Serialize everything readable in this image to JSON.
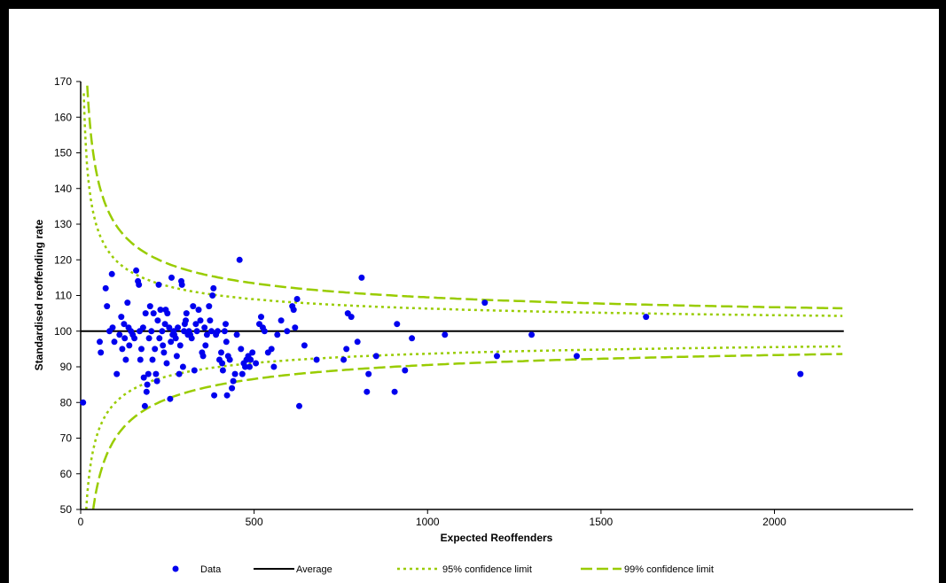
{
  "chart_data": {
    "type": "scatter",
    "xlabel": "Expected Reoffenders",
    "ylabel": "Standardised reoffending rate",
    "xlim": [
      0,
      2400
    ],
    "ylim": [
      50,
      170
    ],
    "x_ticks": [
      0,
      500,
      1000,
      1500,
      2000
    ],
    "y_ticks": [
      50,
      60,
      70,
      80,
      90,
      100,
      110,
      120,
      130,
      140,
      150,
      160,
      170
    ],
    "x_tick_labels": [
      "0",
      "500",
      "1000",
      "1500",
      "2000"
    ],
    "y_tick_labels": [
      "50",
      "60",
      "70",
      "80",
      "90",
      "100",
      "110",
      "120",
      "130",
      "140",
      "150",
      "160",
      "170"
    ],
    "legend_position": "bottom",
    "series": [
      {
        "name": "Data",
        "kind": "scatter",
        "color": "#0000ee",
        "points": [
          [
            7,
            80
          ],
          [
            55,
            97
          ],
          [
            58,
            94
          ],
          [
            72,
            112
          ],
          [
            76,
            107
          ],
          [
            83,
            100
          ],
          [
            90,
            116
          ],
          [
            92,
            101
          ],
          [
            97,
            97
          ],
          [
            104,
            88
          ],
          [
            112,
            99
          ],
          [
            117,
            104
          ],
          [
            120,
            95
          ],
          [
            125,
            102
          ],
          [
            127,
            98
          ],
          [
            130,
            92
          ],
          [
            135,
            108
          ],
          [
            138,
            101
          ],
          [
            140,
            96
          ],
          [
            145,
            100
          ],
          [
            150,
            99
          ],
          [
            155,
            98
          ],
          [
            160,
            117
          ],
          [
            165,
            114
          ],
          [
            168,
            113
          ],
          [
            170,
            100
          ],
          [
            172,
            92
          ],
          [
            175,
            95
          ],
          [
            180,
            101
          ],
          [
            182,
            87
          ],
          [
            185,
            79
          ],
          [
            187,
            105
          ],
          [
            190,
            83
          ],
          [
            192,
            85
          ],
          [
            195,
            88
          ],
          [
            197,
            98
          ],
          [
            200,
            107
          ],
          [
            204,
            100
          ],
          [
            207,
            92
          ],
          [
            210,
            105
          ],
          [
            214,
            95
          ],
          [
            217,
            88
          ],
          [
            220,
            86
          ],
          [
            222,
            103
          ],
          [
            225,
            113
          ],
          [
            227,
            98
          ],
          [
            230,
            106
          ],
          [
            235,
            100
          ],
          [
            237,
            96
          ],
          [
            240,
            94
          ],
          [
            243,
            102
          ],
          [
            245,
            106
          ],
          [
            248,
            91
          ],
          [
            250,
            105
          ],
          [
            255,
            101
          ],
          [
            258,
            81
          ],
          [
            260,
            97
          ],
          [
            262,
            115
          ],
          [
            265,
            99
          ],
          [
            268,
            100
          ],
          [
            270,
            99
          ],
          [
            274,
            98
          ],
          [
            277,
            93
          ],
          [
            280,
            101
          ],
          [
            284,
            88
          ],
          [
            287,
            96
          ],
          [
            290,
            114
          ],
          [
            292,
            113
          ],
          [
            295,
            90
          ],
          [
            298,
            100
          ],
          [
            300,
            102
          ],
          [
            303,
            103
          ],
          [
            305,
            105
          ],
          [
            309,
            99
          ],
          [
            312,
            100
          ],
          [
            316,
            99
          ],
          [
            320,
            98
          ],
          [
            324,
            107
          ],
          [
            328,
            89
          ],
          [
            332,
            102
          ],
          [
            335,
            100
          ],
          [
            340,
            106
          ],
          [
            345,
            103
          ],
          [
            350,
            94
          ],
          [
            353,
            93
          ],
          [
            357,
            101
          ],
          [
            360,
            96
          ],
          [
            364,
            99
          ],
          [
            370,
            107
          ],
          [
            373,
            103
          ],
          [
            377,
            100
          ],
          [
            380,
            110
          ],
          [
            383,
            112
          ],
          [
            385,
            82
          ],
          [
            390,
            99
          ],
          [
            395,
            100
          ],
          [
            400,
            92
          ],
          [
            405,
            94
          ],
          [
            408,
            91
          ],
          [
            410,
            89
          ],
          [
            415,
            100
          ],
          [
            418,
            102
          ],
          [
            420,
            97
          ],
          [
            422,
            82
          ],
          [
            425,
            93
          ],
          [
            430,
            92
          ],
          [
            436,
            84
          ],
          [
            440,
            86
          ],
          [
            445,
            88
          ],
          [
            450,
            99
          ],
          [
            458,
            120
          ],
          [
            462,
            95
          ],
          [
            466,
            88
          ],
          [
            470,
            91
          ],
          [
            474,
            90
          ],
          [
            478,
            92
          ],
          [
            483,
            93
          ],
          [
            487,
            90
          ],
          [
            490,
            92
          ],
          [
            495,
            94
          ],
          [
            505,
            91
          ],
          [
            515,
            102
          ],
          [
            520,
            104
          ],
          [
            525,
            101
          ],
          [
            530,
            100
          ],
          [
            540,
            94
          ],
          [
            550,
            95
          ],
          [
            557,
            90
          ],
          [
            567,
            99
          ],
          [
            578,
            103
          ],
          [
            595,
            100
          ],
          [
            610,
            107
          ],
          [
            614,
            106
          ],
          [
            618,
            101
          ],
          [
            624,
            109
          ],
          [
            630,
            79
          ],
          [
            645,
            96
          ],
          [
            680,
            92
          ],
          [
            758,
            92
          ],
          [
            766,
            95
          ],
          [
            770,
            105
          ],
          [
            780,
            104
          ],
          [
            798,
            97
          ],
          [
            810,
            115
          ],
          [
            825,
            83
          ],
          [
            830,
            88
          ],
          [
            852,
            93
          ],
          [
            905,
            83
          ],
          [
            912,
            102
          ],
          [
            935,
            89
          ],
          [
            955,
            98
          ],
          [
            1050,
            99
          ],
          [
            1165,
            108
          ],
          [
            1200,
            93
          ],
          [
            1300,
            99
          ],
          [
            1430,
            93
          ],
          [
            1630,
            104
          ],
          [
            2075,
            88
          ]
        ]
      },
      {
        "name": "Average",
        "kind": "line",
        "color": "#000000",
        "value": 100,
        "x_range": [
          0,
          2200
        ]
      },
      {
        "name": "95% confidence limit",
        "kind": "funnel",
        "color": "#99cc00",
        "z": 2,
        "x_range": [
          0,
          2200
        ]
      },
      {
        "name": "99% confidence limit",
        "kind": "funnel",
        "color": "#99cc00",
        "z": 3,
        "x_range": [
          0,
          2200
        ]
      }
    ]
  }
}
